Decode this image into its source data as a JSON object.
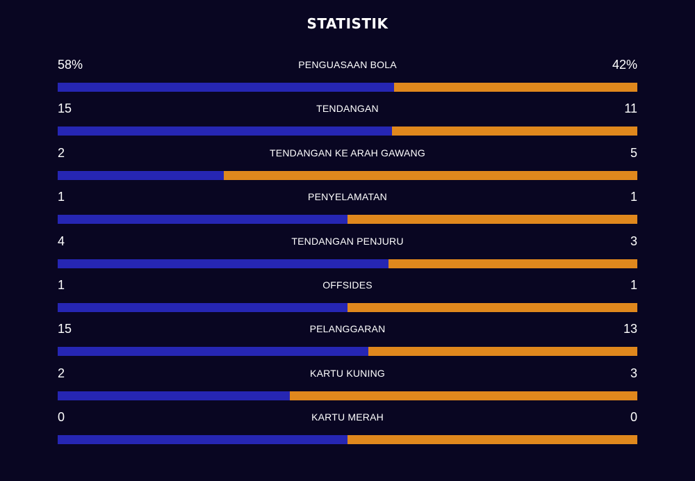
{
  "title": "STATISTIK",
  "colors": {
    "background": "#090622",
    "home": "#2626b3",
    "away": "#e0881d"
  },
  "stats": [
    {
      "label": "PENGUASAAN BOLA",
      "home": "58%",
      "away": "42%",
      "home_share": 0.58
    },
    {
      "label": "TENDANGAN",
      "home": "15",
      "away": "11",
      "home_share": 0.577
    },
    {
      "label": "TENDANGAN KE ARAH GAWANG",
      "home": "2",
      "away": "5",
      "home_share": 0.286
    },
    {
      "label": "PENYELAMATAN",
      "home": "1",
      "away": "1",
      "home_share": 0.5
    },
    {
      "label": "TENDANGAN PENJURU",
      "home": "4",
      "away": "3",
      "home_share": 0.571
    },
    {
      "label": "OFFSIDES",
      "home": "1",
      "away": "1",
      "home_share": 0.5
    },
    {
      "label": "PELANGGARAN",
      "home": "15",
      "away": "13",
      "home_share": 0.536
    },
    {
      "label": "KARTU KUNING",
      "home": "2",
      "away": "3",
      "home_share": 0.4
    },
    {
      "label": "KARTU MERAH",
      "home": "0",
      "away": "0",
      "home_share": 0.5
    }
  ]
}
